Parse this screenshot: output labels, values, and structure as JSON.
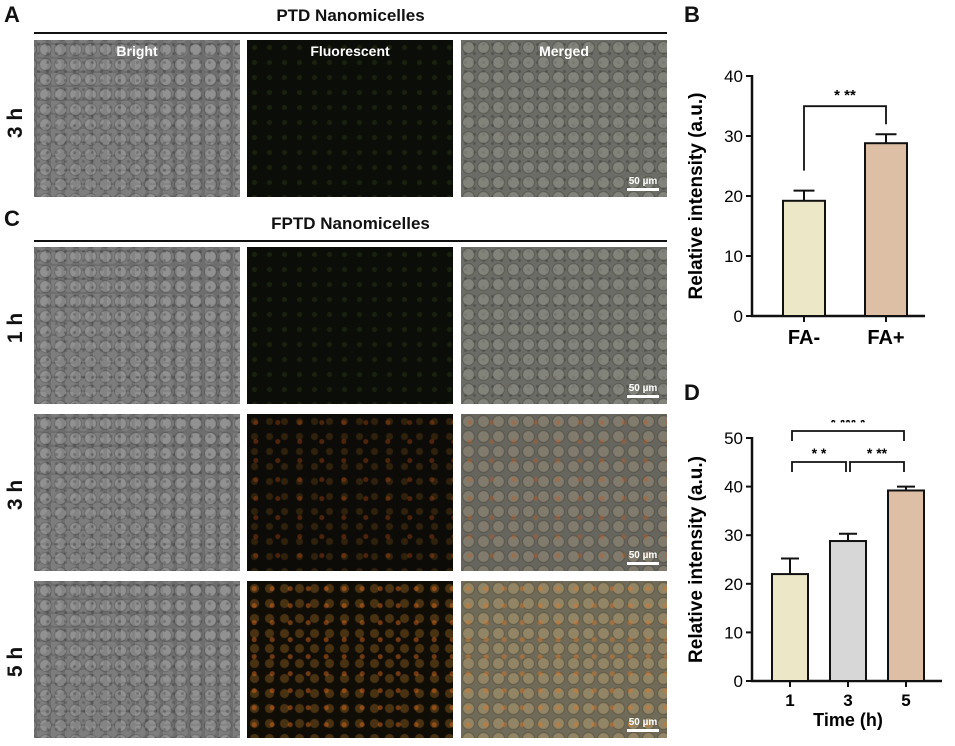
{
  "panel_letters": {
    "a": "A",
    "b": "B",
    "c": "C",
    "d": "D"
  },
  "panel_a": {
    "title": "PTD Nanomicelles",
    "columns": [
      "Bright",
      "Fluorescent",
      "Merged"
    ],
    "row_label": "3 h",
    "scale_bar": "50 µm"
  },
  "panel_c": {
    "title": "FPTD  Nanomicelles",
    "rows": [
      "1 h",
      "3 h",
      "5 h"
    ],
    "scale_bar": "50 µm"
  },
  "chart_data": [
    {
      "id": "B",
      "type": "bar",
      "categories": [
        "FA-",
        "FA+"
      ],
      "values": [
        19.2,
        28.8
      ],
      "errors": [
        1.7,
        1.5
      ],
      "colors": [
        "#ece7c6",
        "#dcbfa4"
      ],
      "ylabel": "Relative intensity (a.u.)",
      "xlabel": "",
      "ylim": [
        0,
        40
      ],
      "yticks": [
        0,
        10,
        20,
        30,
        40
      ],
      "significance": [
        {
          "from": 0,
          "to": 1,
          "label": "* **"
        }
      ]
    },
    {
      "id": "D",
      "type": "bar",
      "categories": [
        "1",
        "3",
        "5"
      ],
      "values": [
        22,
        28.8,
        39.2
      ],
      "errors": [
        3.2,
        1.5,
        0.8
      ],
      "colors": [
        "#ece7c6",
        "#d7d7d7",
        "#dcbfa4"
      ],
      "ylabel": "Relative intensity (a.u.)",
      "xlabel": "Time (h)",
      "ylim": [
        0,
        50
      ],
      "yticks": [
        0,
        10,
        20,
        30,
        40,
        50
      ],
      "significance": [
        {
          "from": 0,
          "to": 2,
          "label": "* *** *",
          "level": 2
        },
        {
          "from": 0,
          "to": 1,
          "label": "* *",
          "level": 1
        },
        {
          "from": 1,
          "to": 2,
          "label": "* **",
          "level": 1
        }
      ]
    }
  ]
}
